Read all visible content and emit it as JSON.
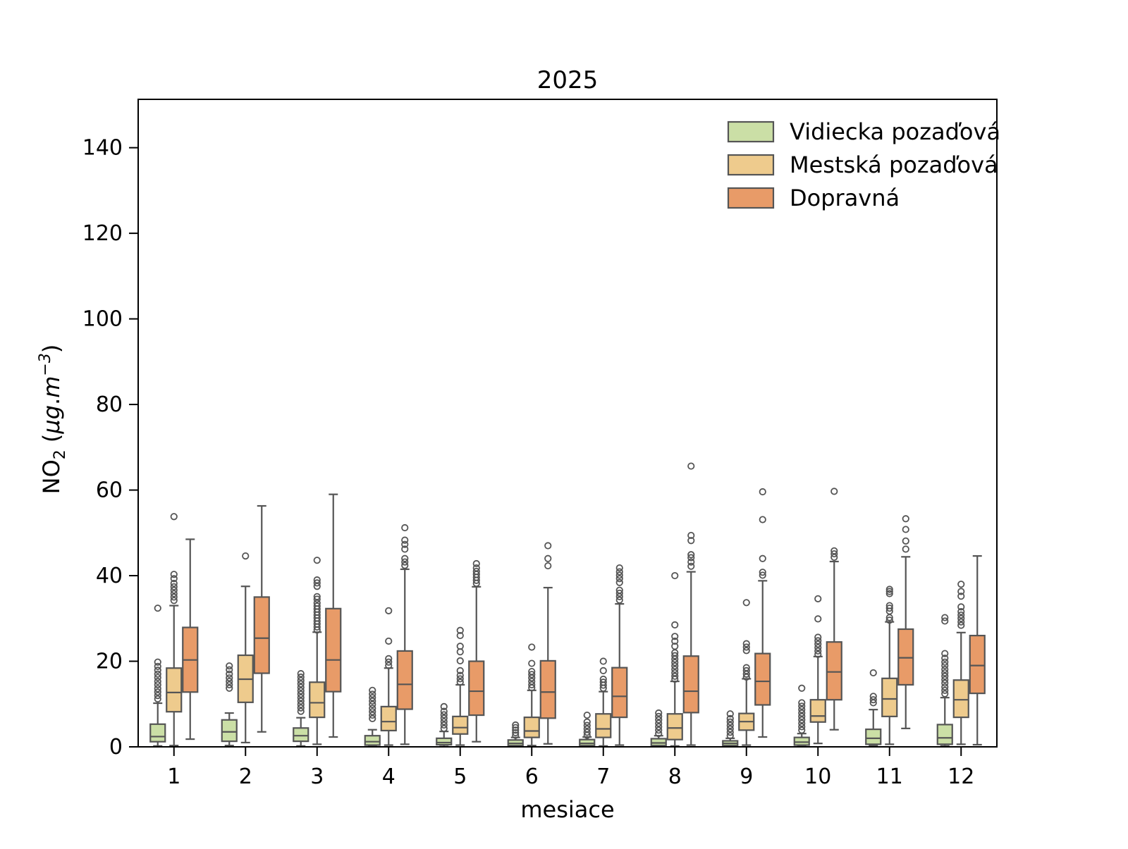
{
  "chart_data": {
    "type": "boxplot",
    "title": "2025",
    "xlabel": "mesiace",
    "ylabel": "NO2 (µg.m−3)",
    "ylabel_parts": [
      {
        "t": "NO"
      },
      {
        "t": "2",
        "style": "sub"
      },
      {
        "t": "  ("
      },
      {
        "t": "µg",
        "style": "italic"
      },
      {
        "t": "."
      },
      {
        "t": "m",
        "style": "italic"
      },
      {
        "t": "−3",
        "style": "sup-italic"
      },
      {
        "t": ")"
      }
    ],
    "categories": [
      "1",
      "2",
      "3",
      "4",
      "5",
      "6",
      "7",
      "8",
      "9",
      "10",
      "11",
      "12"
    ],
    "yticks": [
      0,
      20,
      40,
      60,
      80,
      100,
      120,
      140
    ],
    "ylim": [
      0,
      151.3
    ],
    "grid": false,
    "legend_position": "upper right inside, frameless",
    "colors": {
      "edge": "#555555",
      "spine": "#000000",
      "background": "#ffffff"
    },
    "series": [
      {
        "id": "vidiecka",
        "name": "Vidiecka pozaďová",
        "color": "#cbdfa6",
        "boxes": [
          {
            "lo": 0.2,
            "q1": 1.2,
            "med": 2.4,
            "q3": 5.3,
            "hi": 10.2,
            "fliers": [
              11.2,
              12.0,
              12.8,
              13.6,
              14.5,
              15.3,
              16.2,
              17.0,
              17.9,
              18.8,
              19.8,
              32.4
            ]
          },
          {
            "lo": 0.3,
            "q1": 1.3,
            "med": 3.5,
            "q3": 6.3,
            "hi": 7.9,
            "fliers": [
              13.7,
              14.5,
              15.3,
              16.1,
              17.0,
              18.0,
              18.9
            ]
          },
          {
            "lo": 0.2,
            "q1": 1.3,
            "med": 2.6,
            "q3": 4.4,
            "hi": 6.8,
            "fliers": [
              8.3,
              9.1,
              9.9,
              10.7,
              11.5,
              12.3,
              13.1,
              13.9,
              14.7,
              15.5,
              16.3,
              17.1
            ]
          },
          {
            "lo": 0.2,
            "q1": 0.4,
            "med": 1.2,
            "q3": 2.6,
            "hi": 4.0,
            "fliers": [
              6.6,
              7.4,
              8.2,
              9.0,
              9.9,
              10.7,
              11.5,
              12.3,
              13.2
            ]
          },
          {
            "lo": 0.1,
            "q1": 0.5,
            "med": 1.0,
            "q3": 2.0,
            "hi": 3.6,
            "fliers": [
              4.3,
              5.1,
              5.9,
              6.7,
              7.5,
              8.3,
              9.4
            ]
          },
          {
            "lo": 0.1,
            "q1": 0.3,
            "med": 0.8,
            "q3": 1.6,
            "hi": 2.2,
            "fliers": [
              2.7,
              3.3,
              3.9,
              4.5,
              5.1
            ]
          },
          {
            "lo": 0.1,
            "q1": 0.3,
            "med": 0.8,
            "q3": 1.7,
            "hi": 2.3,
            "fliers": [
              2.7,
              3.4,
              4.2,
              5.0,
              5.8,
              7.4
            ]
          },
          {
            "lo": 0.1,
            "q1": 0.3,
            "med": 0.9,
            "q3": 1.9,
            "hi": 2.6,
            "fliers": [
              3.1,
              3.9,
              4.7,
              5.5,
              6.3,
              7.1,
              7.9
            ]
          },
          {
            "lo": 0.1,
            "q1": 0.3,
            "med": 0.8,
            "q3": 1.4,
            "hi": 2.0,
            "fliers": [
              2.6,
              3.4,
              4.2,
              5.0,
              5.8,
              6.6,
              7.7
            ]
          },
          {
            "lo": 0.2,
            "q1": 0.4,
            "med": 1.1,
            "q3": 2.2,
            "hi": 3.1,
            "fliers": [
              3.9,
              4.7,
              5.5,
              6.3,
              7.1,
              7.9,
              8.7,
              9.5,
              10.3,
              13.7
            ]
          },
          {
            "lo": 0.3,
            "q1": 0.6,
            "med": 2.0,
            "q3": 4.1,
            "hi": 8.7,
            "fliers": [
              10.3,
              11.0,
              11.8,
              17.3
            ]
          },
          {
            "lo": 0.2,
            "q1": 0.6,
            "med": 2.1,
            "q3": 5.2,
            "hi": 11.5,
            "fliers": [
              12.4,
              13.2,
              14.0,
              14.9,
              15.7,
              16.5,
              17.3,
              18.1,
              19.0,
              19.8,
              20.7,
              21.8,
              29.4,
              30.2
            ]
          }
        ]
      },
      {
        "id": "mestska",
        "name": "Mestská pozaďová",
        "color": "#eecb8d",
        "boxes": [
          {
            "lo": 0.3,
            "q1": 8.2,
            "med": 12.7,
            "q3": 18.4,
            "hi": 33.0,
            "fliers": [
              34.2,
              35.0,
              35.8,
              36.6,
              37.4,
              38.2,
              39.3,
              40.3,
              53.8
            ]
          },
          {
            "lo": 1.0,
            "q1": 10.4,
            "med": 15.8,
            "q3": 21.4,
            "hi": 37.5,
            "fliers": [
              44.6
            ]
          },
          {
            "lo": 0.6,
            "q1": 6.9,
            "med": 10.3,
            "q3": 15.1,
            "hi": 26.8,
            "fliers": [
              27.3,
              28.0,
              28.7,
              29.4,
              30.1,
              30.8,
              31.5,
              32.2,
              32.9,
              33.6,
              34.5,
              35.1,
              37.5,
              38.3,
              39.0,
              43.6
            ]
          },
          {
            "lo": 0.4,
            "q1": 3.8,
            "med": 5.9,
            "q3": 9.4,
            "hi": 18.4,
            "fliers": [
              19.0,
              19.8,
              20.6,
              24.7,
              31.8
            ]
          },
          {
            "lo": 0.4,
            "q1": 3.0,
            "med": 4.5,
            "q3": 7.1,
            "hi": 14.5,
            "fliers": [
              15.1,
              15.9,
              16.7,
              17.8,
              20.1,
              22.2,
              23.5,
              26.0,
              27.2
            ]
          },
          {
            "lo": 0.3,
            "q1": 2.2,
            "med": 3.7,
            "q3": 6.9,
            "hi": 13.2,
            "fliers": [
              13.8,
              14.5,
              15.3,
              16.1,
              16.9,
              17.6,
              19.5,
              23.3
            ]
          },
          {
            "lo": 0.2,
            "q1": 2.2,
            "med": 4.2,
            "q3": 7.7,
            "hi": 12.9,
            "fliers": [
              13.7,
              14.4,
              15.1,
              15.8,
              17.8,
              20.0
            ]
          },
          {
            "lo": 0.2,
            "q1": 1.7,
            "med": 4.4,
            "q3": 7.7,
            "hi": 15.3,
            "fliers": [
              15.8,
              16.5,
              17.3,
              18.1,
              18.9,
              19.7,
              20.5,
              21.3,
              22.0,
              23.5,
              24.7,
              25.8,
              28.5,
              40.0
            ]
          },
          {
            "lo": 0.4,
            "q1": 3.9,
            "med": 5.9,
            "q3": 7.8,
            "hi": 15.9,
            "fliers": [
              16.3,
              17.0,
              17.8,
              18.5,
              22.5,
              23.3,
              24.1,
              33.7
            ]
          },
          {
            "lo": 0.8,
            "q1": 5.8,
            "med": 7.2,
            "q3": 11.0,
            "hi": 21.1,
            "fliers": [
              21.6,
              22.4,
              23.2,
              24.0,
              24.8,
              25.6,
              29.9,
              34.6
            ]
          },
          {
            "lo": 0.6,
            "q1": 7.1,
            "med": 11.2,
            "q3": 16.0,
            "hi": 29.2,
            "fliers": [
              29.6,
              30.2,
              31.7,
              32.4,
              33.0,
              35.8,
              36.3,
              36.8
            ]
          },
          {
            "lo": 0.6,
            "q1": 6.9,
            "med": 11.0,
            "q3": 15.6,
            "hi": 26.7,
            "fliers": [
              28.4,
              29.2,
              30.0,
              30.8,
              31.6,
              32.7,
              35.2,
              36.3,
              38.0
            ]
          }
        ]
      },
      {
        "id": "dopravna",
        "name": "Dopravná",
        "color": "#e89b68",
        "boxes": [
          {
            "lo": 1.8,
            "q1": 12.8,
            "med": 20.3,
            "q3": 27.9,
            "hi": 48.5,
            "fliers": []
          },
          {
            "lo": 3.5,
            "q1": 17.2,
            "med": 25.4,
            "q3": 35.0,
            "hi": 56.3,
            "fliers": []
          },
          {
            "lo": 2.3,
            "q1": 12.9,
            "med": 20.3,
            "q3": 32.3,
            "hi": 59.0,
            "fliers": []
          },
          {
            "lo": 0.6,
            "q1": 8.8,
            "med": 14.6,
            "q3": 22.4,
            "hi": 41.5,
            "fliers": [
              42.4,
              43.2,
              44.0,
              46.2,
              47.3,
              48.3,
              51.2
            ]
          },
          {
            "lo": 1.2,
            "q1": 7.4,
            "med": 13.0,
            "q3": 20.0,
            "hi": 37.4,
            "fliers": [
              38.2,
              38.9,
              39.6,
              40.3,
              41.0,
              41.8,
              42.8
            ]
          },
          {
            "lo": 0.7,
            "q1": 6.7,
            "med": 12.8,
            "q3": 20.1,
            "hi": 37.2,
            "fliers": [
              42.3,
              44.0,
              47.0
            ]
          },
          {
            "lo": 0.4,
            "q1": 6.9,
            "med": 11.8,
            "q3": 18.5,
            "hi": 33.4,
            "fliers": [
              34.3,
              35.1,
              35.9,
              36.6,
              38.4,
              39.3,
              40.1,
              40.9,
              41.8
            ]
          },
          {
            "lo": 0.4,
            "q1": 8.0,
            "med": 13.0,
            "q3": 21.2,
            "hi": 40.9,
            "fliers": [
              42.2,
              43.2,
              44.2,
              44.9,
              48.2,
              49.4,
              65.6
            ]
          },
          {
            "lo": 2.3,
            "q1": 9.8,
            "med": 15.3,
            "q3": 21.8,
            "hi": 38.8,
            "fliers": [
              40.1,
              40.8,
              44.0,
              53.1,
              59.6
            ]
          },
          {
            "lo": 4.0,
            "q1": 11.0,
            "med": 17.5,
            "q3": 24.5,
            "hi": 43.3,
            "fliers": [
              44.3,
              45.1,
              45.8,
              59.7
            ]
          },
          {
            "lo": 4.3,
            "q1": 14.5,
            "med": 20.8,
            "q3": 27.5,
            "hi": 44.4,
            "fliers": [
              46.2,
              48.1,
              50.8,
              53.3
            ]
          },
          {
            "lo": 0.5,
            "q1": 12.5,
            "med": 19.0,
            "q3": 26.0,
            "hi": 44.6,
            "fliers": []
          }
        ]
      }
    ]
  }
}
